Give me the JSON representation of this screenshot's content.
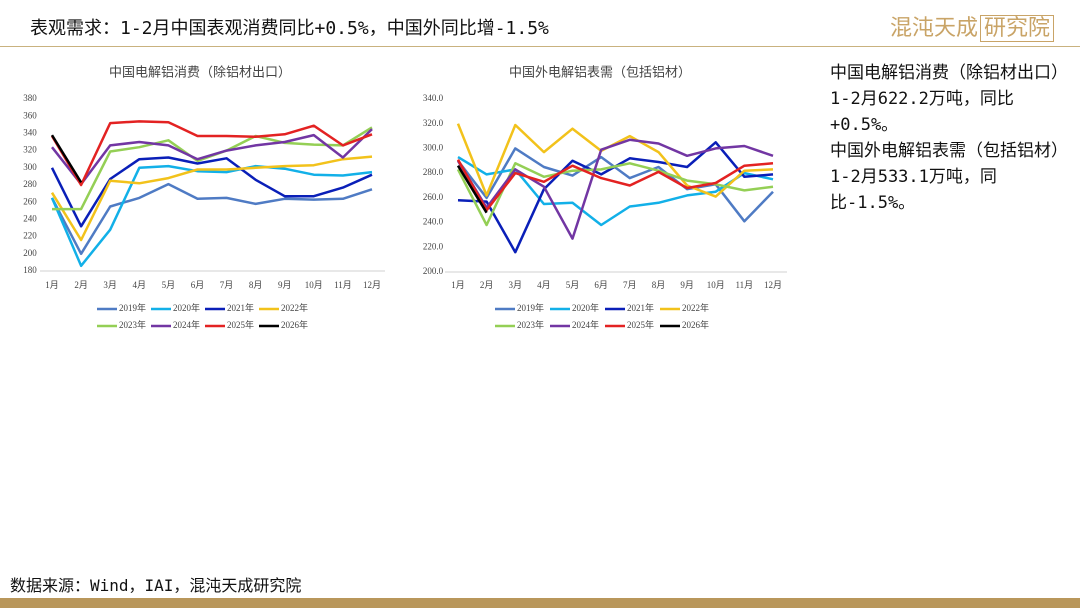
{
  "header": {
    "title": "表观需求：1-2月中国表观消费同比+0.5%，中国外同比增-1.5%",
    "logo": "混沌天成",
    "logo_box": "研究院"
  },
  "chart_data": [
    {
      "type": "line",
      "title": "中国电解铝消费（除铝材出口）",
      "categories": [
        "1月",
        "2月",
        "3月",
        "4月",
        "5月",
        "6月",
        "7月",
        "8月",
        "9月",
        "10月",
        "11月",
        "12月"
      ],
      "ylim": [
        180,
        380
      ],
      "yticks": [
        180,
        200,
        220,
        240,
        260,
        280,
        300,
        320,
        340,
        360,
        380
      ],
      "grid": false,
      "legend": "bottom",
      "series": [
        {
          "name": "2019年",
          "color": "#4f7bc4",
          "values": [
            265,
            200,
            255,
            265,
            281,
            264,
            265,
            258,
            264,
            263,
            264,
            275
          ]
        },
        {
          "name": "2020年",
          "color": "#12b0e8",
          "values": [
            265,
            186,
            228,
            300,
            302,
            296,
            295,
            302,
            299,
            292,
            291,
            295
          ]
        },
        {
          "name": "2021年",
          "color": "#0a1fb8",
          "values": [
            300,
            232,
            287,
            310,
            312,
            305,
            311,
            286,
            267,
            267,
            277,
            292
          ]
        },
        {
          "name": "2022年",
          "color": "#f2c21b",
          "values": [
            271,
            216,
            285,
            282,
            288,
            298,
            298,
            300,
            302,
            303,
            310,
            313
          ]
        },
        {
          "name": "2023年",
          "color": "#94cf55",
          "values": [
            252,
            252,
            319,
            324,
            332,
            308,
            320,
            337,
            329,
            327,
            326,
            347
          ]
        },
        {
          "name": "2024年",
          "color": "#7236a3",
          "values": [
            324,
            281,
            326,
            330,
            326,
            310,
            320,
            326,
            330,
            338,
            312,
            345
          ]
        },
        {
          "name": "2025年",
          "color": "#e32222",
          "values": [
            337,
            280,
            352,
            354,
            353,
            337,
            337,
            336,
            339,
            349,
            326,
            339
          ]
        },
        {
          "name": "2026年",
          "color": "#000000",
          "values": [
            338,
            283,
            null,
            null,
            null,
            null,
            null,
            null,
            null,
            null,
            null,
            null
          ]
        }
      ]
    },
    {
      "type": "line",
      "title": "中国外电解铝表需（包括铝材）",
      "categories": [
        "1月",
        "2月",
        "3月",
        "4月",
        "5月",
        "6月",
        "7月",
        "8月",
        "9月",
        "10月",
        "11月",
        "12月"
      ],
      "ylim": [
        200,
        340
      ],
      "yticks": [
        {
          "value": 200,
          "label": "200.0"
        },
        {
          "value": 220,
          "label": "220.0"
        },
        {
          "value": 240,
          "label": "240.0"
        },
        {
          "value": 260,
          "label": "260.0"
        },
        {
          "value": 280,
          "label": "280.0"
        },
        {
          "value": 300,
          "label": "300.0"
        },
        {
          "value": 320,
          "label": "320.0"
        },
        {
          "value": 340,
          "label": "340.0"
        }
      ],
      "grid": false,
      "legend": "bottom",
      "series": [
        {
          "name": "2019年",
          "color": "#4f7bc4",
          "values": [
            290,
            260,
            300,
            285,
            278,
            293,
            276,
            285,
            267,
            271,
            241,
            265
          ]
        },
        {
          "name": "2020年",
          "color": "#12b0e8",
          "values": [
            293,
            279,
            283,
            255,
            256,
            238,
            253,
            256,
            262,
            265,
            280,
            275
          ]
        },
        {
          "name": "2021年",
          "color": "#0a1fb8",
          "values": [
            258,
            257,
            216,
            267,
            290,
            279,
            292,
            289,
            285,
            305,
            277,
            279
          ]
        },
        {
          "name": "2022年",
          "color": "#f2c21b",
          "values": [
            320,
            262,
            319,
            297,
            316,
            298,
            310,
            297,
            270,
            261,
            282,
            283
          ]
        },
        {
          "name": "2023年",
          "color": "#94cf55",
          "values": [
            283,
            238,
            288,
            277,
            282,
            283,
            288,
            282,
            274,
            271,
            266,
            269
          ]
        },
        {
          "name": "2024年",
          "color": "#7236a3",
          "values": [
            290,
            252,
            283,
            269,
            227,
            299,
            307,
            304,
            294,
            300,
            302,
            294
          ]
        },
        {
          "name": "2025年",
          "color": "#e32222",
          "values": [
            291,
            250,
            280,
            273,
            286,
            276,
            270,
            281,
            268,
            272,
            286,
            288
          ]
        },
        {
          "name": "2026年",
          "color": "#000000",
          "values": [
            286,
            248,
            null,
            null,
            null,
            null,
            null,
            null,
            null,
            null,
            null,
            null
          ]
        }
      ]
    }
  ],
  "notes": [
    "中国电解铝消费（除铝材出口）1-2月622.2万吨，同比+0.5%。",
    "中国外电解铝表需（包括铝材）1-2月533.1万吨，同比-1.5%。"
  ],
  "footer": {
    "source": "数据来源：Wind，IAI，混沌天成研究院"
  }
}
